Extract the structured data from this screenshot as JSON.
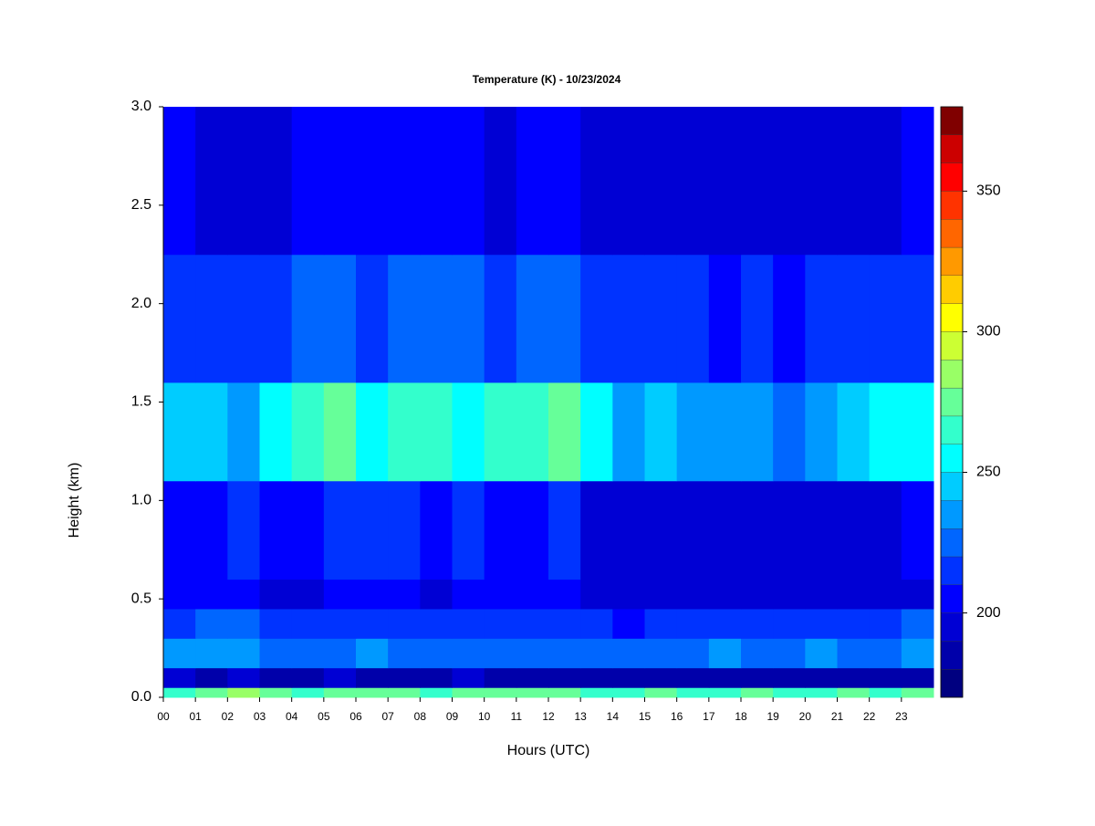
{
  "chart_data": {
    "type": "heatmap",
    "title": "Temperature (K) - 10/23/2024",
    "xlabel": "Hours (UTC)",
    "ylabel": "Height (km)",
    "x_edges": [
      0,
      1,
      2,
      3,
      4,
      5,
      6,
      7,
      8,
      9,
      10,
      11,
      12,
      13,
      14,
      15,
      16,
      17,
      18,
      19,
      20,
      21,
      22,
      23,
      24
    ],
    "y_edges": [
      0,
      0.05,
      0.15,
      0.3,
      0.45,
      0.6,
      1.1,
      1.6,
      2.25,
      3.0
    ],
    "z": [
      [
        265,
        275,
        280,
        270,
        268,
        272,
        275,
        270,
        268,
        270,
        272,
        275,
        270,
        268,
        265,
        270,
        268,
        265,
        270,
        268,
        265,
        270,
        268,
        272
      ],
      [
        190,
        188,
        192,
        186,
        185,
        190,
        188,
        186,
        185,
        190,
        188,
        185,
        186,
        184,
        185,
        188,
        185,
        186,
        185,
        184,
        186,
        185,
        184,
        188
      ],
      [
        230,
        232,
        238,
        225,
        222,
        228,
        230,
        226,
        228,
        225,
        224,
        226,
        228,
        222,
        220,
        228,
        226,
        230,
        228,
        224,
        230,
        226,
        228,
        232
      ],
      [
        215,
        225,
        220,
        212,
        210,
        218,
        214,
        215,
        216,
        212,
        210,
        214,
        218,
        210,
        208,
        212,
        214,
        216,
        212,
        215,
        218,
        216,
        214,
        220
      ],
      [
        200,
        205,
        202,
        198,
        196,
        204,
        200,
        202,
        198,
        200,
        200,
        202,
        205,
        195,
        192,
        196,
        195,
        194,
        193,
        192,
        194,
        195,
        194,
        198
      ],
      [
        205,
        208,
        210,
        205,
        208,
        215,
        210,
        212,
        208,
        210,
        206,
        208,
        212,
        198,
        192,
        196,
        194,
        192,
        193,
        194,
        196,
        192,
        194,
        200
      ],
      [
        245,
        240,
        238,
        250,
        262,
        272,
        258,
        265,
        262,
        258,
        260,
        268,
        270,
        255,
        232,
        240,
        236,
        232,
        230,
        228,
        238,
        248,
        252,
        250
      ],
      [
        215,
        218,
        212,
        214,
        220,
        225,
        218,
        222,
        220,
        224,
        215,
        220,
        222,
        218,
        210,
        214,
        212,
        208,
        210,
        205,
        210,
        212,
        214,
        212
      ],
      [
        200,
        198,
        196,
        198,
        202,
        205,
        200,
        204,
        200,
        205,
        198,
        202,
        200,
        198,
        196,
        198,
        196,
        194,
        195,
        194,
        196,
        198,
        196,
        200
      ]
    ],
    "xlim": [
      0,
      24
    ],
    "ylim": [
      0,
      3
    ],
    "xticks": [
      {
        "value": 0,
        "label": "00"
      },
      {
        "value": 1,
        "label": "01"
      },
      {
        "value": 2,
        "label": "02"
      },
      {
        "value": 3,
        "label": "03"
      },
      {
        "value": 4,
        "label": "04"
      },
      {
        "value": 5,
        "label": "05"
      },
      {
        "value": 6,
        "label": "06"
      },
      {
        "value": 7,
        "label": "07"
      },
      {
        "value": 8,
        "label": "08"
      },
      {
        "value": 9,
        "label": "09"
      },
      10,
      11,
      12,
      13,
      14,
      15,
      16,
      17,
      18,
      19,
      20,
      21,
      22,
      23
    ],
    "yticks": [
      {
        "value": 0,
        "label": "0.0"
      },
      0.5,
      {
        "value": 1,
        "label": "1.0"
      },
      1.5,
      {
        "value": 2,
        "label": "2.0"
      },
      2.5,
      {
        "value": 3,
        "label": "3.0"
      }
    ],
    "zlim": [
      170,
      380
    ],
    "zticks": [
      200,
      250,
      300,
      350
    ],
    "colorscale": [
      "#000080",
      "#0000AA",
      "#0000D4",
      "#0000FF",
      "#0033FF",
      "#0066FF",
      "#0099FF",
      "#00CCFF",
      "#00FFFF",
      "#33FFCC",
      "#66FF99",
      "#99FF66",
      "#CCFF33",
      "#FFFF00",
      "#FFCC00",
      "#FF9900",
      "#FF6600",
      "#FF3300",
      "#FF0000",
      "#CC0000",
      "#800000"
    ]
  }
}
